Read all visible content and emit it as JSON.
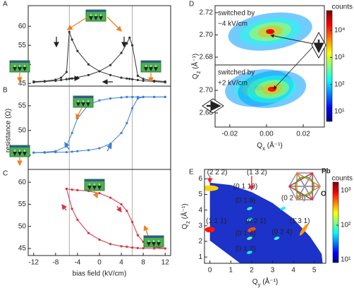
{
  "panel_labels": [
    "A",
    "B",
    "C",
    "D",
    "E"
  ],
  "chart_data": [
    {
      "type": "line",
      "x": [
        -12,
        -10,
        -8,
        -7,
        -6,
        -5.5,
        -5,
        -4,
        -2,
        0,
        2,
        4,
        5,
        5.5,
        6,
        7,
        8,
        10,
        12
      ],
      "series": [
        {
          "color": "#333333",
          "values": [
            45.5,
            45.6,
            46,
            46.5,
            48,
            58.5,
            56.5,
            53.5,
            50,
            48.2,
            47.2,
            46.5,
            46.3,
            46.2,
            46.1,
            45.9,
            45.7,
            45.5,
            45.3
          ]
        },
        {
          "color": "#333333",
          "values": [
            45.3,
            45.5,
            45.7,
            45.9,
            46.1,
            46.2,
            46.3,
            46.6,
            47.2,
            48.2,
            49.8,
            53,
            55.5,
            57,
            55,
            47,
            46.2,
            45.7,
            45.5
          ]
        }
      ],
      "xlim": [
        -13,
        13
      ],
      "ylim": [
        44.3,
        65.4
      ],
      "yticks": [
        45,
        50,
        55,
        60
      ],
      "reference_lines": [
        -5.5,
        6
      ]
    },
    {
      "type": "line",
      "x": [
        -12,
        -10,
        -8,
        -6,
        -5,
        -4,
        -2,
        0,
        2,
        4,
        5,
        6,
        7,
        8,
        10,
        12
      ],
      "series": [
        {
          "color": "#3a7fd5",
          "values": [
            45.5,
            45.5,
            45.6,
            45.6,
            45.7,
            45.8,
            46,
            46.4,
            47.3,
            49.5,
            51.5,
            54.5,
            56.5,
            56.8,
            56.8,
            56.8
          ]
        },
        {
          "color": "#3a7fd5",
          "values": [
            45.5,
            45.6,
            45.8,
            46.8,
            49.5,
            52.5,
            55.2,
            56.1,
            56.5,
            56.7,
            56.8,
            56.8,
            56.8,
            56.8,
            56.8,
            56.8
          ]
        }
      ],
      "xlim": [
        -13,
        13
      ],
      "ylim": [
        42.1,
        59
      ],
      "yticks": [
        45,
        50,
        55
      ],
      "reference_lines": [
        -5.5,
        6
      ],
      "ylabel": "resistance (Ω)"
    },
    {
      "type": "line",
      "x": [
        -6,
        -5,
        -4,
        -2,
        0,
        2,
        4,
        5,
        6,
        7,
        8,
        10,
        12
      ],
      "series": [
        {
          "color": "#d9303f",
          "values": [
            58.5,
            58.3,
            58.2,
            58,
            57.5,
            56.5,
            55,
            53.5,
            51,
            48,
            46.5,
            45.3,
            45
          ]
        },
        {
          "color": "#d9303f",
          "values": [
            58.5,
            54,
            51.5,
            48.5,
            47,
            46,
            45.5,
            45.4,
            45.2,
            45.1,
            45.05,
            45,
            45
          ]
        }
      ],
      "xlim": [
        -13,
        13
      ],
      "ylim": [
        43.4,
        62.9
      ],
      "yticks": [
        45,
        50,
        55,
        60
      ],
      "xticks": [
        -12,
        -8,
        -4,
        0,
        4,
        8,
        12
      ],
      "reference_lines": [
        -5.5,
        6
      ],
      "xlabel": "bias field (kV/cm)"
    },
    {
      "type": "map",
      "annotation": [
        "switched by",
        "−4 kV/cm"
      ],
      "xlim": [
        -0.028,
        0.0315
      ],
      "ylim": [
        2.673,
        2.7263
      ],
      "yticks": [
        2.68,
        {
          "value": 2.7,
          "label": "2.70"
        },
        2.72
      ],
      "ylabel": {
        "symbol": "Q",
        "sub": "z",
        "unit": " (Å⁻¹)"
      },
      "peaks": {
        "qx": [
          0.002
        ],
        "qz": [
          2.703
        ],
        "counts": [
          20000
        ]
      },
      "colorbar": {
        "label": "counts",
        "scale": "log",
        "lim": [
          4.3,
          54000
        ],
        "ticks": [
          {
            "value": 10,
            "label": "10¹"
          },
          {
            "value": 100,
            "label": "10²"
          },
          {
            "value": 1000,
            "label": "10³"
          },
          {
            "value": 10000,
            "label": "10⁴"
          }
        ]
      }
    },
    {
      "type": "map",
      "annotation": [
        "switched by",
        "+2 kV/cm"
      ],
      "xlim": [
        -0.028,
        0.0315
      ],
      "ylim": [
        2.6675,
        2.7225
      ],
      "yticks": [
        2.68,
        {
          "value": 2.7,
          "label": "2.70"
        }
      ],
      "xticks": [
        -0.02,
        {
          "value": 0,
          "label": "0.00"
        },
        0.02
      ],
      "xlabel": {
        "symbol": "Q",
        "sub": "x",
        "unit": " (Å⁻¹)"
      },
      "peaks": {
        "qx": [
          -0.004,
          0.003
        ],
        "qz": [
          2.702,
          2.701
        ],
        "counts": [
          12000,
          15000
        ]
      }
    },
    {
      "type": "map",
      "xlim": [
        -0.26,
        5.55
      ],
      "ylim": [
        0.6,
        6.6
      ],
      "xticks": [
        0,
        1,
        2,
        3,
        4,
        5
      ],
      "yticks": [
        1,
        2,
        3,
        4,
        5,
        6
      ],
      "xlabel": {
        "symbol": "Q",
        "sub": "y",
        "unit": " (Å⁻¹)"
      },
      "ylabel": {
        "symbol": "Q",
        "sub": "z",
        "unit": " (Å⁻¹)"
      },
      "spots": {
        "qy": [
          0,
          0,
          2.0,
          4.5,
          1.9,
          3.5,
          1.9,
          1.9,
          3.2,
          1.9
        ],
        "qz": [
          5.4,
          2.75,
          2.75,
          2.75,
          4.1,
          4.1,
          3.4,
          2.2,
          2.2,
          1.3
        ],
        "counts": [
          300,
          800,
          600,
          400,
          80,
          60,
          80,
          100,
          80,
          60
        ]
      },
      "labels": [
        {
          "text": "(2 2 2)",
          "color": "#e8202a"
        },
        {
          "text": "(1 3 2)",
          "color": "#e8202a"
        },
        {
          "text": "(1 1 1)",
          "color": "#e8202a"
        },
        {
          "text": "(0 2 1)",
          "color": "#e8202a"
        },
        {
          "text": "(1̄ 3 1)",
          "color": "#e8202a"
        },
        {
          "text": "(0 1 10)",
          "color": "#ffffff"
        },
        {
          "text": "(0 1 8)",
          "color": "#ffffff"
        },
        {
          "text": "(0 2 10)",
          "color": "#ffffff"
        },
        {
          "text": "(0 1 4)",
          "color": "#ffffff"
        },
        {
          "text": "(0 2 4)",
          "color": "#ffffff"
        },
        {
          "text": "(0 1 2)",
          "color": "#ffffff"
        }
      ],
      "inset_labels": [
        "Pb",
        "O"
      ],
      "colorbar": {
        "label": "counts",
        "scale": "log",
        "lim": [
          8.3,
          1750
        ],
        "ticks": [
          {
            "value": 10,
            "label": "10¹"
          },
          {
            "value": 100,
            "label": "10²"
          },
          {
            "value": 1000,
            "label": "10³"
          }
        ]
      }
    }
  ]
}
